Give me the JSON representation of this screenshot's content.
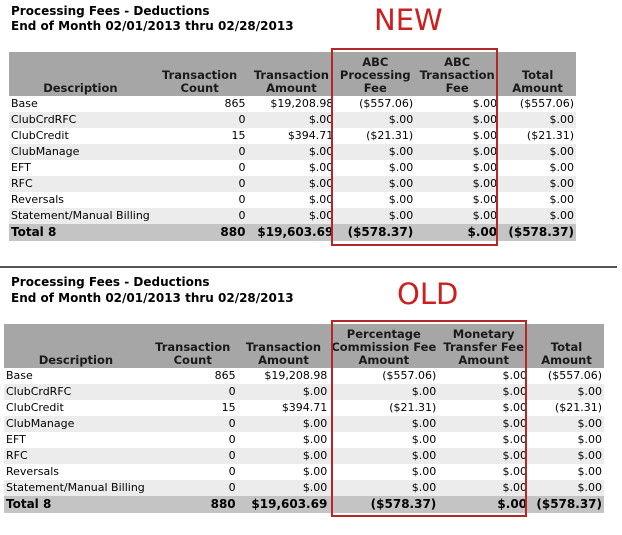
{
  "new_section": {
    "tag": "NEW",
    "title": "Processing Fees - Deductions",
    "subtitle": "End of Month 02/01/2013 thru 02/28/2013",
    "headers": {
      "description": "Description",
      "txn_count": [
        "Transaction",
        "Count"
      ],
      "txn_amount": [
        "Transaction",
        "Amount"
      ],
      "fee1": [
        "ABC",
        "Processing",
        "Fee"
      ],
      "fee2": [
        "ABC",
        "Transaction",
        "Fee"
      ],
      "total": [
        "Total",
        "Amount"
      ]
    },
    "rows": [
      {
        "desc": "Base",
        "count": "865",
        "amount": "$19,208.98",
        "fee1": "($557.06)",
        "fee2": "$.00",
        "total": "($557.06)"
      },
      {
        "desc": "ClubCrdRFC",
        "count": "0",
        "amount": "$.00",
        "fee1": "$.00",
        "fee2": "$.00",
        "total": "$.00"
      },
      {
        "desc": "ClubCredit",
        "count": "15",
        "amount": "$394.71",
        "fee1": "($21.31)",
        "fee2": "$.00",
        "total": "($21.31)"
      },
      {
        "desc": "ClubManage",
        "count": "0",
        "amount": "$.00",
        "fee1": "$.00",
        "fee2": "$.00",
        "total": "$.00"
      },
      {
        "desc": "EFT",
        "count": "0",
        "amount": "$.00",
        "fee1": "$.00",
        "fee2": "$.00",
        "total": "$.00"
      },
      {
        "desc": "RFC",
        "count": "0",
        "amount": "$.00",
        "fee1": "$.00",
        "fee2": "$.00",
        "total": "$.00"
      },
      {
        "desc": "Reversals",
        "count": "0",
        "amount": "$.00",
        "fee1": "$.00",
        "fee2": "$.00",
        "total": "$.00"
      },
      {
        "desc": "Statement/Manual Billing",
        "count": "0",
        "amount": "$.00",
        "fee1": "$.00",
        "fee2": "$.00",
        "total": "$.00"
      }
    ],
    "total_row": {
      "desc": "Total 8",
      "count": "880",
      "amount": "$19,603.69",
      "fee1": "($578.37)",
      "fee2": "$.00",
      "total": "($578.37)"
    }
  },
  "old_section": {
    "tag": "OLD",
    "title": "Processing Fees - Deductions",
    "subtitle": "End of Month 02/01/2013 thru 02/28/2013",
    "headers": {
      "description": "Description",
      "txn_count": [
        "Transaction",
        "Count"
      ],
      "txn_amount": [
        "Transaction",
        "Amount"
      ],
      "fee1": [
        "Percentage",
        "Commission Fee",
        "Amount"
      ],
      "fee2": [
        "Monetary",
        "Transfer Fee",
        "Amount"
      ],
      "total": [
        "Total",
        "Amount"
      ]
    },
    "rows": [
      {
        "desc": "Base",
        "count": "865",
        "amount": "$19,208.98",
        "fee1": "($557.06)",
        "fee2": "$.00",
        "total": "($557.06)"
      },
      {
        "desc": "ClubCrdRFC",
        "count": "0",
        "amount": "$.00",
        "fee1": "$.00",
        "fee2": "$.00",
        "total": "$.00"
      },
      {
        "desc": "ClubCredit",
        "count": "15",
        "amount": "$394.71",
        "fee1": "($21.31)",
        "fee2": "$.00",
        "total": "($21.31)"
      },
      {
        "desc": "ClubManage",
        "count": "0",
        "amount": "$.00",
        "fee1": "$.00",
        "fee2": "$.00",
        "total": "$.00"
      },
      {
        "desc": "EFT",
        "count": "0",
        "amount": "$.00",
        "fee1": "$.00",
        "fee2": "$.00",
        "total": "$.00"
      },
      {
        "desc": "RFC",
        "count": "0",
        "amount": "$.00",
        "fee1": "$.00",
        "fee2": "$.00",
        "total": "$.00"
      },
      {
        "desc": "Reversals",
        "count": "0",
        "amount": "$.00",
        "fee1": "$.00",
        "fee2": "$.00",
        "total": "$.00"
      },
      {
        "desc": "Statement/Manual Billing",
        "count": "0",
        "amount": "$.00",
        "fee1": "$.00",
        "fee2": "$.00",
        "total": "$.00"
      }
    ],
    "total_row": {
      "desc": "Total 8",
      "count": "880",
      "amount": "$19,603.69",
      "fee1": "($578.37)",
      "fee2": "$.00",
      "total": "($578.37)"
    }
  },
  "colors": {
    "highlight": "#b52626",
    "tag": "#cc1f1f",
    "header_bg": "#a6a6a6",
    "total_bg": "#c4c4c4"
  }
}
